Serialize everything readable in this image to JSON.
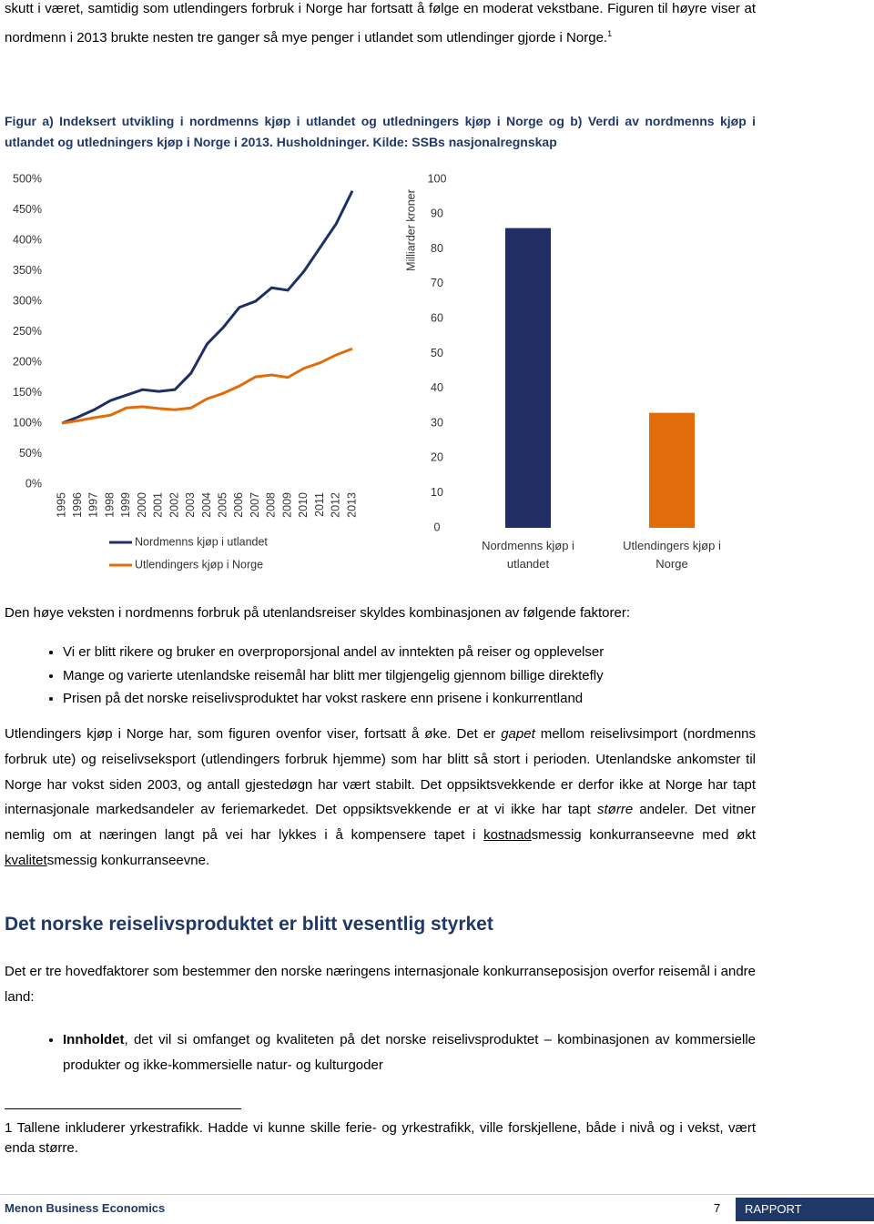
{
  "intro": {
    "text": "skutt i været, samtidig som utlendingers forbruk i Norge har fortsatt å følge en moderat vekstbane. Figuren til høyre viser at nordmenn i 2013 brukte nesten tre ganger så mye penger i utlandet som utlendinger gjorde i Norge.",
    "footnote_ref": "1"
  },
  "figure_caption": "Figur a) Indeksert utvikling i nordmenns kjøp i utlandet og utledningers kjøp i Norge og b) Verdi av nordmenns kjøp i utlandet og utledningers kjøp i Norge i 2013. Husholdninger. Kilde: SSBs nasjonalregnskap",
  "chart_data": [
    {
      "type": "line",
      "x": [
        1995,
        1996,
        1997,
        1998,
        1999,
        2000,
        2001,
        2002,
        2003,
        2004,
        2005,
        2006,
        2007,
        2008,
        2009,
        2010,
        2011,
        2012,
        2013
      ],
      "series": [
        {
          "name": "Nordmenns kjøp i utlandet",
          "color": "#1f2f66",
          "values": [
            100,
            110,
            122,
            137,
            146,
            155,
            152,
            155,
            182,
            230,
            257,
            290,
            300,
            322,
            318,
            349,
            388,
            427,
            481
          ]
        },
        {
          "name": "Utlendingers kjøp i Norge",
          "color": "#e36c0a",
          "values": [
            100,
            104,
            109,
            113,
            125,
            127,
            124,
            122,
            125,
            140,
            149,
            161,
            176,
            179,
            175,
            190,
            199,
            212,
            222
          ]
        }
      ],
      "ylim": [
        0,
        500
      ],
      "yticks": [
        {
          "value": 0,
          "label": "0%"
        },
        {
          "value": 50,
          "label": "50%"
        },
        {
          "value": 100,
          "label": "100%"
        },
        {
          "value": 150,
          "label": "150%"
        },
        {
          "value": 200,
          "label": "200%"
        },
        {
          "value": 250,
          "label": "250%"
        },
        {
          "value": 300,
          "label": "300%"
        },
        {
          "value": 350,
          "label": "350%"
        },
        {
          "value": 400,
          "label": "400%"
        },
        {
          "value": 450,
          "label": "450%"
        },
        {
          "value": 500,
          "label": "500%"
        }
      ],
      "grid": false,
      "legend": "bottom"
    },
    {
      "type": "bar",
      "ylabel": "Milliarder kroner",
      "categories": [
        "Nordmenns kjøp i utlandet",
        "Utlendingers kjøp i Norge"
      ],
      "values": [
        86,
        33
      ],
      "colors": [
        "#1f2f66",
        "#e36c0a"
      ],
      "ylim": [
        0,
        100
      ],
      "yticks": [
        0,
        10,
        20,
        30,
        40,
        50,
        60,
        70,
        80,
        90,
        100
      ],
      "grid": false
    }
  ],
  "lead": "Den høye veksten i nordmenns forbruk på utenlandsreiser skyldes kombinasjonen av følgende faktorer:",
  "bullets": [
    "Vi er blitt rikere og bruker en overproporsjonal andel av inntekten på reiser og opplevelser",
    "Mange og varierte utenlandske reisemål har blitt mer tilgjengelig gjennom billige direktefly",
    "Prisen på det norske reiselivsproduktet har vokst raskere enn prisene i konkurrentland"
  ],
  "paragraph": [
    "Utlendingers kjøp i Norge har, som figuren ovenfor viser, fortsatt å øke. Det er ",
    "gapet",
    " mellom reiselivsimport (nordmenns forbruk ute) og reiselivseksport (utlendingers forbruk hjemme) som har blitt så stort i perioden. Utenlandske ankomster til Norge har vokst siden 2003, og antall gjestedøgn har vært stabilt. Det oppsiktsvekkende er derfor ikke at Norge har tapt internasjonale markedsandeler av feriemarkedet. Det oppsiktsvekkende er at vi ikke har tapt ",
    "større",
    " andeler. Det vitner nemlig om at næringen langt på vei har lykkes i å kompensere tapet i ",
    "kostnad",
    "smessig konkurranseevne med økt ",
    "kvalitet",
    "smessig konkurranseevne."
  ],
  "heading": "Det norske reiselivsproduktet er blitt vesentlig styrket",
  "paragraph2": "Det er tre hovedfaktorer som bestemmer den norske næringens internasjonale konkurranseposisjon overfor reisemål i andre land:",
  "bullets2": [
    {
      "bold": "Innholdet",
      "text": ", det vil si omfanget og kvaliteten på det norske reiselivsproduktet – kombinasjonen av kommersielle produkter og ikke-kommersielle natur- og kulturgoder"
    }
  ],
  "footnote": {
    "number": "1",
    "text": "Tallene inkluderer yrkestrafikk. Hadde vi kunne skille ferie- og yrkestrafikk, ville forskjellene, både i nivå og i vekst, vært enda større."
  },
  "footer": {
    "left": "Menon Business Economics",
    "page": 7,
    "right": "RAPPORT"
  }
}
